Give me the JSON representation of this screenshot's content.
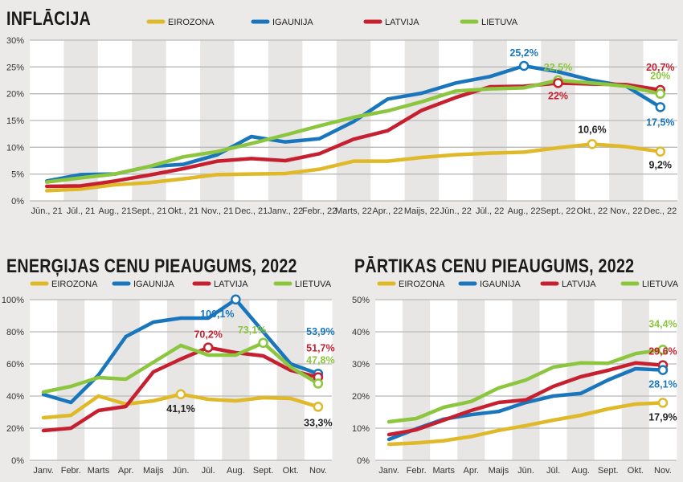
{
  "colors": {
    "Eirozona": "#dfb927",
    "Igaunija": "#1976bd",
    "Latvija": "#c61f30",
    "Lietuva": "#8cc63e"
  },
  "chart_data": [
    {
      "type": "line",
      "title": "INFLĀCIJA",
      "categories": [
        "Jūn., 21",
        "Jūl., 21",
        "Aug., 21",
        "Sept., 21",
        "Okt., 21",
        "Nov., 21",
        "Dec., 21",
        "Janv., 22",
        "Febr., 22",
        "Marts, 22",
        "Apr., 22",
        "Maijs, 22",
        "Jūn., 22",
        "Jūl., 22",
        "Aug., 22",
        "Sept., 22",
        "Okt., 22",
        "Nov., 22",
        "Dec., 22"
      ],
      "ylim": [
        0,
        30
      ],
      "yticks": [
        "0%",
        "5%",
        "10%",
        "15%",
        "20%",
        "25%",
        "30%"
      ],
      "grid": true,
      "legend": "top",
      "series": [
        {
          "name": "EIROZONA",
          "key": "Eirozona",
          "values": [
            1.9,
            2.2,
            3.0,
            3.4,
            4.1,
            4.9,
            5.0,
            5.1,
            5.9,
            7.4,
            7.4,
            8.1,
            8.6,
            8.9,
            9.1,
            9.9,
            10.6,
            10.1,
            9.2
          ]
        },
        {
          "name": "IGAUNIJA",
          "key": "Igaunija",
          "values": [
            3.7,
            4.9,
            5.0,
            6.4,
            6.8,
            8.6,
            12.0,
            11.0,
            11.6,
            14.8,
            19.0,
            20.1,
            22.0,
            23.2,
            25.2,
            24.1,
            22.5,
            21.4,
            17.5
          ]
        },
        {
          "name": "LATVIJA",
          "key": "Latvija",
          "values": [
            2.7,
            2.8,
            3.7,
            4.8,
            6.0,
            7.4,
            7.9,
            7.5,
            8.8,
            11.5,
            13.1,
            16.9,
            19.3,
            21.3,
            21.4,
            22.0,
            21.8,
            21.7,
            20.7
          ]
        },
        {
          "name": "LIETUVA",
          "key": "Lietuva",
          "values": [
            3.5,
            4.3,
            5.0,
            6.4,
            8.2,
            9.2,
            10.7,
            12.3,
            14.0,
            15.6,
            16.8,
            18.5,
            20.5,
            20.9,
            21.1,
            22.5,
            22.0,
            21.4,
            20.0
          ]
        }
      ],
      "annotations": [
        {
          "series": 1,
          "index": 14,
          "label": "25,2%"
        },
        {
          "series": 3,
          "index": 15,
          "label": "22,5%"
        },
        {
          "series": 2,
          "index": 15,
          "label": "22%"
        },
        {
          "series": 0,
          "index": 16,
          "label": "10,6%"
        },
        {
          "series": 0,
          "index": 18,
          "label": "9,2%"
        },
        {
          "series": 2,
          "index": 18,
          "label": "20,7%"
        },
        {
          "series": 3,
          "index": 18,
          "label": "20%"
        },
        {
          "series": 1,
          "index": 18,
          "label": "17,5%"
        }
      ]
    },
    {
      "type": "line",
      "title": "ENERĢIJAS CENU PIEAUGUMS, 2022",
      "categories": [
        "Janv.",
        "Febr.",
        "Marts",
        "Apr.",
        "Maijs",
        "Jūn.",
        "Jūl.",
        "Aug.",
        "Sept.",
        "Okt.",
        "Nov."
      ],
      "ylim": [
        0,
        100
      ],
      "yticks": [
        "0%",
        "20%",
        "40%",
        "60%",
        "80%",
        "100%"
      ],
      "grid": true,
      "legend": "top",
      "series": [
        {
          "name": "EIROZONA",
          "key": "Eirozona",
          "values": [
            26.5,
            28,
            40,
            35,
            37,
            41.1,
            38,
            37,
            39,
            38.5,
            33.3
          ]
        },
        {
          "name": "IGAUNIJA",
          "key": "Igaunija",
          "values": [
            41,
            36,
            53,
            77,
            86,
            88.5,
            88.5,
            100.1,
            80,
            60,
            53.9
          ]
        },
        {
          "name": "LATVIJA",
          "key": "Latvija",
          "values": [
            18.5,
            20,
            31,
            33.5,
            55,
            63,
            70.2,
            67,
            65,
            56,
            51.7
          ]
        },
        {
          "name": "LIETUVA",
          "key": "Lietuva",
          "values": [
            42.5,
            46,
            51.5,
            50.5,
            61,
            71.5,
            65.5,
            65.5,
            73.1,
            58,
            47.8
          ]
        }
      ],
      "annotations": [
        {
          "series": 1,
          "index": 7,
          "label": "100,1%"
        },
        {
          "series": 2,
          "index": 6,
          "label": "70,2%"
        },
        {
          "series": 3,
          "index": 8,
          "label": "73,1%"
        },
        {
          "series": 0,
          "index": 5,
          "label": "41,1%"
        },
        {
          "series": 0,
          "index": 10,
          "label": "33,3%"
        },
        {
          "series": 1,
          "index": 10,
          "label": "53,9%"
        },
        {
          "series": 2,
          "index": 10,
          "label": "51,7%"
        },
        {
          "series": 3,
          "index": 10,
          "label": "47,8%"
        }
      ]
    },
    {
      "type": "line",
      "title": "PĀRTIKAS CENU PIEAUGUMS, 2022",
      "categories": [
        "Janv.",
        "Febr.",
        "Marts",
        "Apr.",
        "Maijs",
        "Jūn.",
        "Jūl.",
        "Aug.",
        "Sept.",
        "Okt.",
        "Nov."
      ],
      "ylim": [
        0,
        50
      ],
      "yticks": [
        "0%",
        "10%",
        "20%",
        "30%",
        "40%",
        "50%"
      ],
      "grid": true,
      "legend": "top",
      "series": [
        {
          "name": "EIROZONA",
          "key": "Eirozona",
          "values": [
            5,
            5.4,
            6.1,
            7.4,
            9.3,
            10.8,
            12.5,
            14,
            16,
            17.5,
            17.9
          ]
        },
        {
          "name": "IGAUNIJA",
          "key": "Igaunija",
          "values": [
            6.5,
            9.8,
            12.8,
            14.2,
            15.2,
            18,
            20,
            20.8,
            25,
            28.5,
            28.1
          ]
        },
        {
          "name": "LATVIJA",
          "key": "Latvija",
          "values": [
            8,
            9.5,
            12.5,
            15.5,
            18,
            18.8,
            23,
            26,
            28,
            30.3,
            29.6
          ]
        },
        {
          "name": "LIETUVA",
          "key": "Lietuva",
          "values": [
            12,
            13,
            16.5,
            18.3,
            22.5,
            25,
            29,
            30.3,
            30.2,
            33.2,
            34.4
          ]
        }
      ],
      "annotations": [
        {
          "series": 3,
          "index": 10,
          "label": "34,4%"
        },
        {
          "series": 2,
          "index": 10,
          "label": "29,6%"
        },
        {
          "series": 1,
          "index": 10,
          "label": "28,1%"
        },
        {
          "series": 0,
          "index": 10,
          "label": "17,9%"
        }
      ]
    }
  ]
}
